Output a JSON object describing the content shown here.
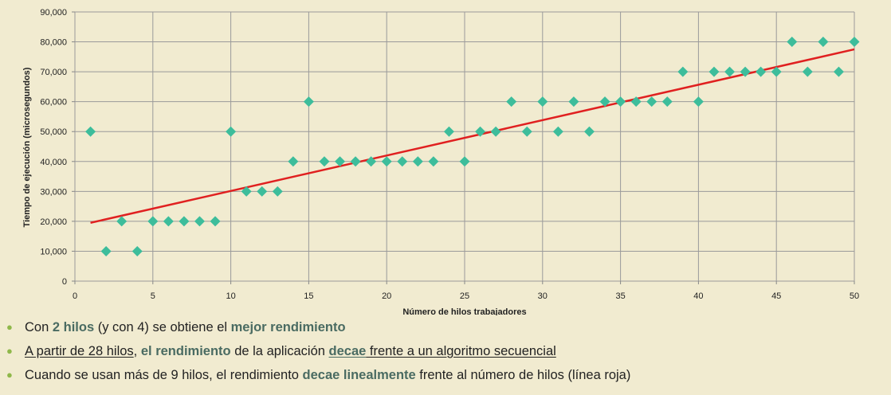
{
  "chart_data": {
    "type": "scatter",
    "xlabel": "Número de hilos trabajadores",
    "ylabel": "Tiempo de ejecución (microsegundos)",
    "xlim": [
      0,
      50
    ],
    "ylim": [
      0,
      90000
    ],
    "xticks": [
      "0",
      "5",
      "10",
      "15",
      "20",
      "25",
      "30",
      "35",
      "40",
      "45",
      "50"
    ],
    "yticks": [
      "0",
      "10,000",
      "20,000",
      "30,000",
      "40,000",
      "50,000",
      "60,000",
      "70,000",
      "80,000",
      "90,000"
    ],
    "grid": true,
    "points": {
      "x": [
        1,
        2,
        3,
        4,
        5,
        6,
        7,
        8,
        9,
        10,
        11,
        12,
        13,
        14,
        15,
        16,
        17,
        18,
        19,
        20,
        21,
        22,
        23,
        24,
        25,
        26,
        27,
        28,
        29,
        30,
        31,
        32,
        33,
        34,
        35,
        36,
        37,
        38,
        39,
        40,
        41,
        42,
        43,
        44,
        45,
        46,
        47,
        48,
        49,
        50
      ],
      "y": [
        50000,
        10000,
        20000,
        10000,
        20000,
        20000,
        20000,
        20000,
        20000,
        50000,
        30000,
        30000,
        30000,
        40000,
        60000,
        40000,
        40000,
        40000,
        40000,
        40000,
        40000,
        40000,
        40000,
        50000,
        40000,
        50000,
        50000,
        60000,
        50000,
        60000,
        50000,
        60000,
        50000,
        60000,
        60000,
        60000,
        60000,
        60000,
        70000,
        60000,
        70000,
        70000,
        70000,
        70000,
        70000,
        80000,
        70000,
        80000,
        70000,
        80000
      ]
    },
    "trendline": {
      "x": [
        1,
        50
      ],
      "y": [
        19500,
        77500
      ],
      "color": "#e02020"
    },
    "marker_color": "#3dbd9b"
  },
  "bullets": [
    {
      "parts": [
        {
          "text": "Con "
        },
        {
          "text": "2 hilos",
          "style": "hl"
        },
        {
          "text": " (y con 4) se obtiene el "
        },
        {
          "text": "mejor rendimiento",
          "style": "hl"
        }
      ]
    },
    {
      "parts": [
        {
          "text": "A partir de 28 hilos",
          "style": "ul"
        },
        {
          "text": ", "
        },
        {
          "text": "el rendimiento",
          "style": "hl"
        },
        {
          "text": " de la aplicación "
        },
        {
          "text": "decae",
          "style": "hl ul"
        },
        {
          "text": " frente a un algoritmo secuencial",
          "style": "ul"
        }
      ]
    },
    {
      "parts": [
        {
          "text": "Cuando se usan más de 9 hilos, el rendimiento "
        },
        {
          "text": "decae linealmente",
          "style": "hl"
        },
        {
          "text": " frente al número de hilos (línea  roja)"
        }
      ]
    }
  ],
  "colors": {
    "background": "#f1ebd0",
    "highlight": "#4a6b62",
    "bullet": "#8fb84a",
    "grid": "#999999"
  }
}
